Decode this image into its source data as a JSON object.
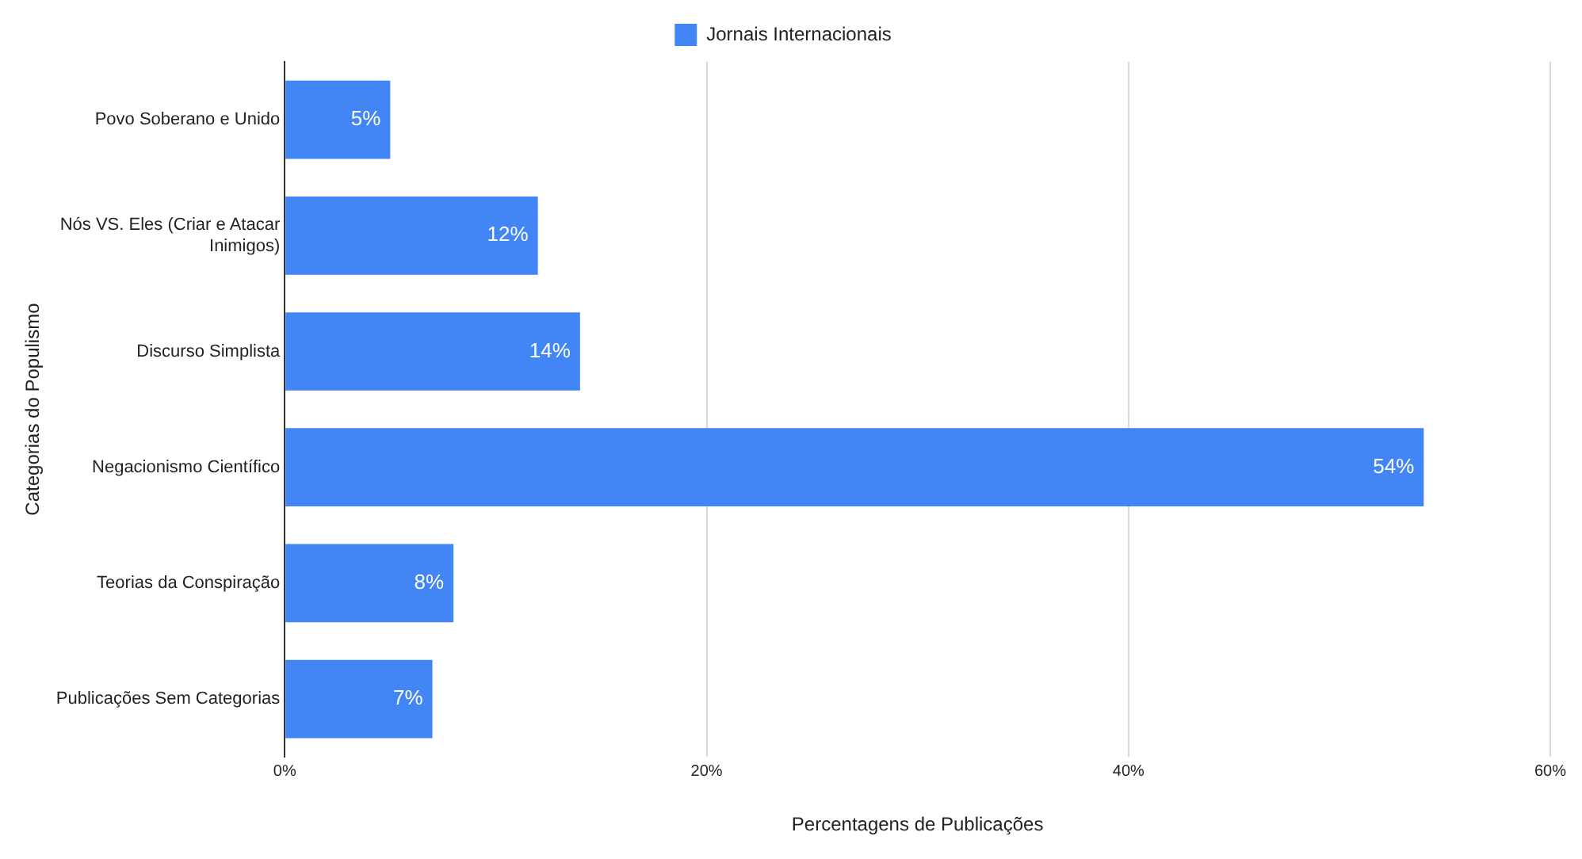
{
  "chart_data": {
    "type": "bar",
    "orientation": "horizontal",
    "xlabel": "Percentagens de Publicações",
    "ylabel": "Categorias do Populismo",
    "categories": [
      "Povo Soberano e Unido",
      "Nós VS. Eles (Criar e Atacar Inimigos)",
      "Discurso Simplista",
      "Negacionismo Científico",
      "Teorias da Conspiração",
      "Publicações Sem Categorias"
    ],
    "series": [
      {
        "name": "Jornais Internacionais",
        "color": "#4285f4",
        "values": [
          5,
          12,
          14,
          54,
          8,
          7
        ],
        "value_labels": [
          "5%",
          "12%",
          "14%",
          "54%",
          "8%",
          "7%"
        ]
      }
    ],
    "xlim": [
      0,
      60
    ],
    "xticks": [
      {
        "value": 0,
        "label": "0%"
      },
      {
        "value": 20,
        "label": "20%"
      },
      {
        "value": 40,
        "label": "40%"
      },
      {
        "value": 60,
        "label": "60%"
      }
    ],
    "grid": "x",
    "legend": "top"
  }
}
